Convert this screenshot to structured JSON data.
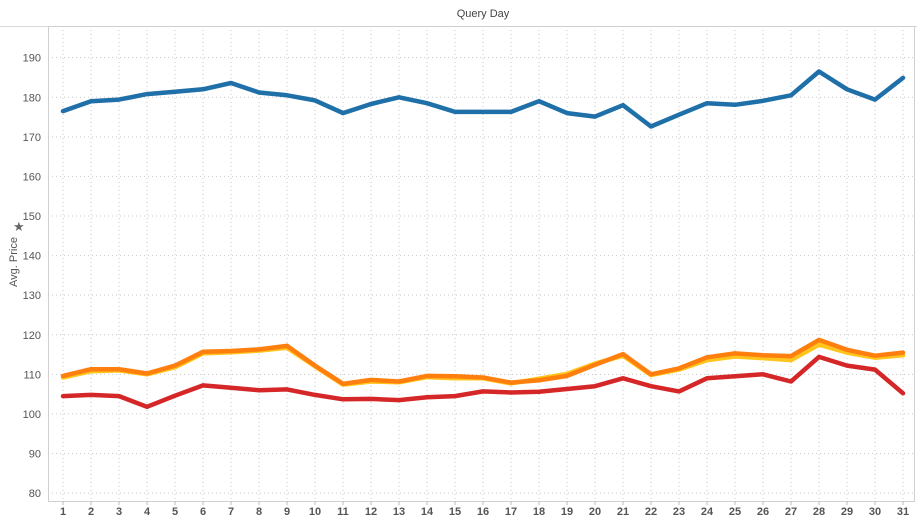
{
  "chart_data": {
    "type": "line",
    "title": "Query Day",
    "ylabel": "Avg. Price",
    "ylim": [
      78,
      198
    ],
    "yticks": [
      80,
      90,
      100,
      110,
      120,
      130,
      140,
      150,
      160,
      170,
      180,
      190
    ],
    "x": [
      1,
      2,
      3,
      4,
      5,
      6,
      7,
      8,
      9,
      10,
      11,
      12,
      13,
      14,
      15,
      16,
      17,
      18,
      19,
      20,
      21,
      22,
      23,
      24,
      25,
      26,
      27,
      28,
      29,
      30,
      31
    ],
    "grid": true,
    "legend": "none",
    "series": [
      {
        "color": "#1f6fa8",
        "values": [
          176.5,
          179,
          179.4,
          180.8,
          181.4,
          182,
          183.6,
          181.2,
          180.5,
          179.2,
          176,
          178.3,
          180,
          178.5,
          176.3,
          176.3,
          176.3,
          179,
          176,
          175.1,
          178,
          172.6,
          175.6,
          178.5,
          178.1,
          179.1,
          180.5,
          186.5,
          182,
          179.4,
          184.9
        ]
      },
      {
        "color": "#ffc51c",
        "values": [
          109.2,
          110.8,
          111,
          110,
          111.8,
          115.3,
          115.6,
          116,
          116.7,
          112,
          107.4,
          108.2,
          108,
          109.3,
          109,
          109,
          107.7,
          108.9,
          110.1,
          112.7,
          114.7,
          109.8,
          111.2,
          113.6,
          114.5,
          114.1,
          113.6,
          117.5,
          115.5,
          114.2,
          114.8
        ]
      },
      {
        "color": "#ff7f0e",
        "values": [
          109.6,
          111.3,
          111.3,
          110.2,
          112.2,
          115.7,
          115.9,
          116.3,
          117.2,
          112.2,
          107.6,
          108.6,
          108.2,
          109.6,
          109.5,
          109.2,
          107.9,
          108.5,
          109.6,
          112.4,
          115.1,
          110,
          111.5,
          114.3,
          115.3,
          114.8,
          114.6,
          118.7,
          116.2,
          114.7,
          115.5
        ]
      },
      {
        "color": "#d62728",
        "values": [
          104.5,
          104.8,
          104.5,
          101.8,
          104.6,
          107.2,
          106.6,
          106,
          106.2,
          104.8,
          103.7,
          103.8,
          103.5,
          104.2,
          104.5,
          105.7,
          105.4,
          105.6,
          106.3,
          107,
          109,
          107,
          105.7,
          109,
          109.5,
          110,
          108.2,
          114.4,
          112.2,
          111.2,
          105.2
        ]
      }
    ]
  }
}
